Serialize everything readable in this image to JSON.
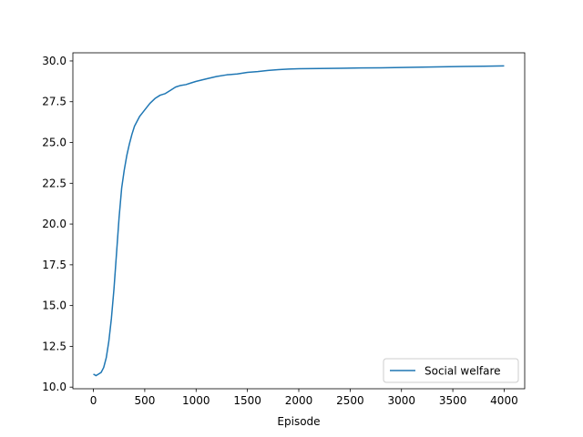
{
  "chart_data": {
    "type": "line",
    "title": "",
    "xlabel": "Episode",
    "ylabel": "",
    "xlim": [
      -200,
      4200
    ],
    "ylim": [
      9.9,
      30.5
    ],
    "xticks": [
      0,
      500,
      1000,
      1500,
      2000,
      2500,
      3000,
      3500,
      4000
    ],
    "yticks": [
      10.0,
      12.5,
      15.0,
      17.5,
      20.0,
      22.5,
      25.0,
      27.5,
      30.0
    ],
    "xtick_labels": [
      "0",
      "500",
      "1000",
      "1500",
      "2000",
      "2500",
      "3000",
      "3500",
      "4000"
    ],
    "ytick_labels": [
      "10.0",
      "12.5",
      "15.0",
      "17.5",
      "20.0",
      "22.5",
      "25.0",
      "27.5",
      "30.0"
    ],
    "grid": false,
    "legend_position": "lower-right",
    "series": [
      {
        "name": "Social welfare",
        "color": "#1f77b4",
        "x": [
          0,
          25,
          50,
          75,
          100,
          125,
          150,
          175,
          200,
          225,
          250,
          275,
          300,
          325,
          350,
          375,
          400,
          425,
          450,
          475,
          500,
          550,
          600,
          650,
          700,
          750,
          800,
          850,
          900,
          950,
          1000,
          1100,
          1200,
          1300,
          1400,
          1500,
          1600,
          1700,
          1800,
          1900,
          2000,
          2100,
          2200,
          2400,
          2600,
          2800,
          3000,
          3200,
          3400,
          3600,
          3800,
          4000
        ],
        "y": [
          10.8,
          10.7,
          10.8,
          10.9,
          11.2,
          11.8,
          12.8,
          14.2,
          16.0,
          18.2,
          20.4,
          22.2,
          23.3,
          24.2,
          24.9,
          25.5,
          26.0,
          26.3,
          26.6,
          26.8,
          27.0,
          27.4,
          27.7,
          27.9,
          28.0,
          28.2,
          28.4,
          28.5,
          28.55,
          28.65,
          28.75,
          28.9,
          29.05,
          29.15,
          29.2,
          29.3,
          29.35,
          29.42,
          29.47,
          29.5,
          29.52,
          29.53,
          29.54,
          29.55,
          29.57,
          29.58,
          29.6,
          29.62,
          29.64,
          29.66,
          29.68,
          29.7
        ]
      }
    ]
  }
}
